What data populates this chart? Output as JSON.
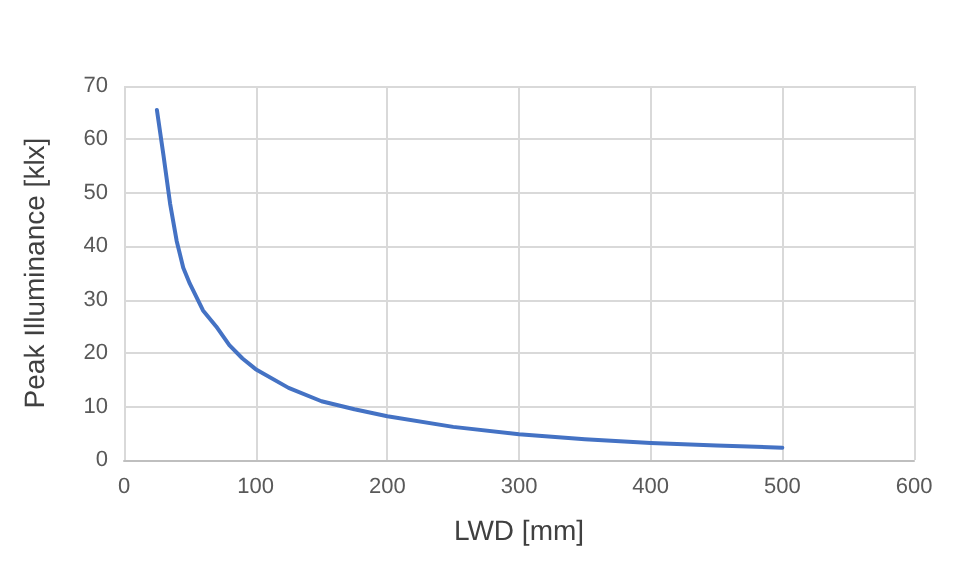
{
  "chart_data": {
    "type": "line",
    "xlabel": "LWD [mm]",
    "ylabel": "Peak Illuminance [klx]",
    "x": [
      25,
      30,
      35,
      40,
      45,
      50,
      60,
      70,
      80,
      90,
      100,
      125,
      150,
      175,
      200,
      250,
      300,
      350,
      400,
      450,
      500
    ],
    "series": [
      {
        "color": "#4472c4",
        "values": [
          65.5,
          57,
          48,
          41,
          36,
          33,
          28,
          25,
          21.5,
          19,
          17,
          13.5,
          11,
          9.5,
          8.2,
          6.2,
          4.8,
          3.9,
          3.2,
          2.7,
          2.3
        ]
      }
    ],
    "xlim": [
      0,
      600
    ],
    "xticks": [
      0,
      100,
      200,
      300,
      400,
      500,
      600
    ],
    "ylim": [
      0,
      70
    ],
    "yticks": [
      0,
      10,
      20,
      30,
      40,
      50,
      60,
      70
    ],
    "grid": true,
    "marker": "none",
    "line_style": "solid"
  }
}
